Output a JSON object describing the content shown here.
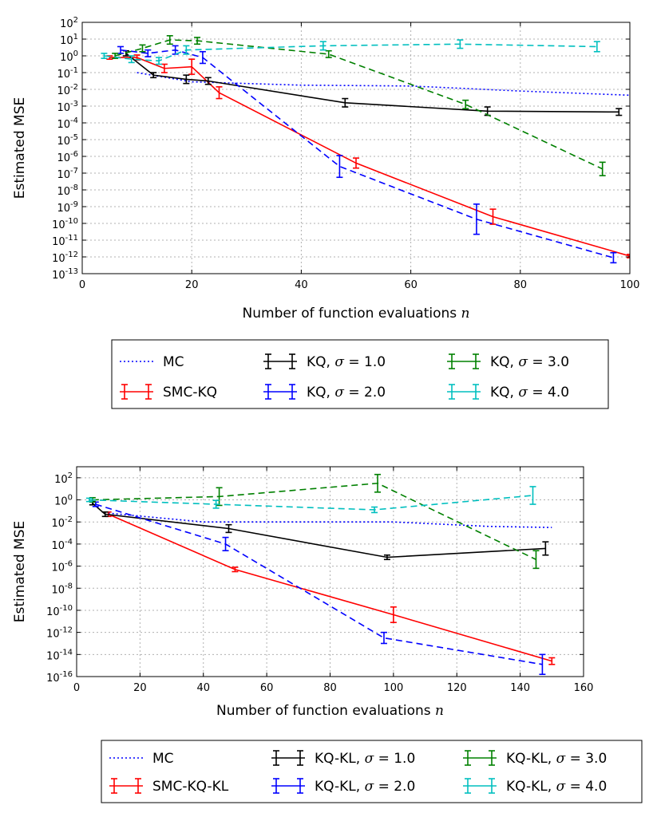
{
  "chart_data": [
    {
      "type": "line",
      "scale": "log-y",
      "xlabel": "Number of function evaluations",
      "xlabel_var": "n",
      "ylabel": "Estimated MSE",
      "xlim": [
        0,
        100
      ],
      "xticks": [
        "0",
        "20",
        "40",
        "60",
        "80",
        "100"
      ],
      "ylim_exp": [
        -13,
        2
      ],
      "ytick_exps": [
        -13,
        -12,
        -11,
        -10,
        -9,
        -8,
        -7,
        -6,
        -5,
        -4,
        -3,
        -2,
        -1,
        0,
        1,
        2
      ],
      "grid": true,
      "series": [
        {
          "name": "MC",
          "color": "#0000ff",
          "style": "dotted",
          "errorbars": false,
          "points": [
            [
              10,
              -1.0
            ],
            [
              20,
              -1.55
            ],
            [
              40,
              -1.75
            ],
            [
              60,
              -1.8
            ],
            [
              80,
              -2.1
            ],
            [
              100,
              -2.35
            ]
          ]
        },
        {
          "name": "SMC-KQ",
          "color": "#ff0000",
          "style": "solid",
          "errorbars": true,
          "points": [
            [
              5,
              -0.1,
              0.1
            ],
            [
              10,
              -0.1,
              0.15
            ],
            [
              15,
              -0.75,
              0.25
            ],
            [
              20,
              -0.65,
              0.45
            ],
            [
              25,
              -2.2,
              0.35
            ],
            [
              50,
              -6.4,
              0.3
            ],
            [
              75,
              -9.6,
              0.45
            ],
            [
              100,
              -11.95,
              0.1
            ]
          ]
        },
        {
          "name": "KQ, σ = 1.0",
          "color": "#000000",
          "style": "solid",
          "errorbars": true,
          "points": [
            [
              8,
              0.15,
              0.15
            ],
            [
              13,
              -1.15,
              0.15
            ],
            [
              19,
              -1.4,
              0.25
            ],
            [
              23,
              -1.5,
              0.2
            ],
            [
              48,
              -2.8,
              0.25
            ],
            [
              74,
              -3.3,
              0.25
            ],
            [
              98,
              -3.35,
              0.2
            ]
          ]
        },
        {
          "name": "KQ, σ = 2.0",
          "color": "#0000ff",
          "style": "dashed",
          "errorbars": true,
          "points": [
            [
              7,
              0.35,
              0.2
            ],
            [
              12,
              0.15,
              0.2
            ],
            [
              17,
              0.35,
              0.25
            ],
            [
              22,
              -0.1,
              0.35
            ],
            [
              47,
              -6.6,
              0.65
            ],
            [
              72,
              -9.75,
              0.9
            ],
            [
              97,
              -12.05,
              0.3
            ]
          ]
        },
        {
          "name": "KQ, σ = 3.0",
          "color": "#008000",
          "style": "dashed",
          "errorbars": true,
          "points": [
            [
              6,
              0.0,
              0.15
            ],
            [
              11,
              0.45,
              0.2
            ],
            [
              16,
              0.95,
              0.25
            ],
            [
              21,
              0.9,
              0.2
            ],
            [
              45,
              0.1,
              0.2
            ],
            [
              70,
              -2.9,
              0.25
            ],
            [
              95,
              -6.75,
              0.4
            ]
          ]
        },
        {
          "name": "KQ, σ = 4.0",
          "color": "#00bfbf",
          "style": "dashed",
          "errorbars": true,
          "points": [
            [
              4,
              0.0,
              0.15
            ],
            [
              9,
              -0.2,
              0.2
            ],
            [
              14,
              -0.3,
              0.2
            ],
            [
              19,
              0.35,
              0.25
            ],
            [
              44,
              0.6,
              0.25
            ],
            [
              69,
              0.7,
              0.25
            ],
            [
              94,
              0.55,
              0.3
            ]
          ]
        }
      ],
      "legend": {
        "columns": [
          [
            "MC",
            "SMC-KQ"
          ],
          [
            "KQ, σ = 1.0",
            "KQ, σ = 2.0"
          ],
          [
            "KQ, σ = 3.0",
            "KQ, σ = 4.0"
          ]
        ]
      }
    },
    {
      "type": "line",
      "scale": "log-y",
      "xlabel": "Number of function evaluations",
      "xlabel_var": "n",
      "ylabel": "Estimated MSE",
      "xlim": [
        0,
        160
      ],
      "xticks": [
        "0",
        "20",
        "40",
        "60",
        "80",
        "100",
        "120",
        "140",
        "160"
      ],
      "ylim_exp": [
        -16,
        3
      ],
      "ytick_exps": [
        -16,
        -14,
        -12,
        -10,
        -8,
        -6,
        -4,
        -2,
        0,
        2
      ],
      "grid": true,
      "series": [
        {
          "name": "MC",
          "color": "#0000ff",
          "style": "dotted",
          "errorbars": false,
          "points": [
            [
              10,
              -1.2
            ],
            [
              40,
              -2.0
            ],
            [
              70,
              -2.0
            ],
            [
              100,
              -2.0
            ],
            [
              130,
              -2.4
            ],
            [
              150,
              -2.5
            ]
          ]
        },
        {
          "name": "SMC-KQ-KL",
          "color": "#ff0000",
          "style": "solid",
          "errorbars": true,
          "points": [
            [
              10,
              -1.3,
              0.2
            ],
            [
              50,
              -6.3,
              0.2
            ],
            [
              100,
              -10.4,
              0.7
            ],
            [
              150,
              -14.6,
              0.3
            ]
          ]
        },
        {
          "name": "KQ-KL, σ = 1.0",
          "color": "#000000",
          "style": "solid",
          "errorbars": true,
          "points": [
            [
              5,
              -0.3,
              0.15
            ],
            [
              9,
              -1.3,
              0.2
            ],
            [
              48,
              -2.6,
              0.35
            ],
            [
              98,
              -5.2,
              0.2
            ],
            [
              148,
              -4.4,
              0.6
            ]
          ]
        },
        {
          "name": "KQ-KL, σ = 2.0",
          "color": "#0000ff",
          "style": "dashed",
          "errorbars": true,
          "points": [
            [
              6,
              -0.4,
              0.2
            ],
            [
              47,
              -4.0,
              0.6
            ],
            [
              97,
              -12.5,
              0.5
            ],
            [
              147,
              -14.9,
              0.9
            ]
          ]
        },
        {
          "name": "KQ-KL, σ = 3.0",
          "color": "#008000",
          "style": "dashed",
          "errorbars": true,
          "points": [
            [
              5,
              0.0,
              0.2
            ],
            [
              45,
              0.3,
              0.8
            ],
            [
              95,
              1.5,
              0.8
            ],
            [
              145,
              -5.4,
              0.8
            ]
          ]
        },
        {
          "name": "KQ-KL, σ = 4.0",
          "color": "#00bfbf",
          "style": "dashed",
          "errorbars": true,
          "points": [
            [
              4,
              0.0,
              0.15
            ],
            [
              44,
              -0.4,
              0.35
            ],
            [
              94,
              -0.9,
              0.25
            ],
            [
              144,
              0.4,
              0.8
            ]
          ]
        }
      ],
      "legend": {
        "columns": [
          [
            "MC",
            "SMC-KQ-KL"
          ],
          [
            "KQ-KL, σ = 1.0",
            "KQ-KL, σ = 2.0"
          ],
          [
            "KQ-KL, σ = 3.0",
            "KQ-KL, σ = 4.0"
          ]
        ]
      }
    }
  ]
}
